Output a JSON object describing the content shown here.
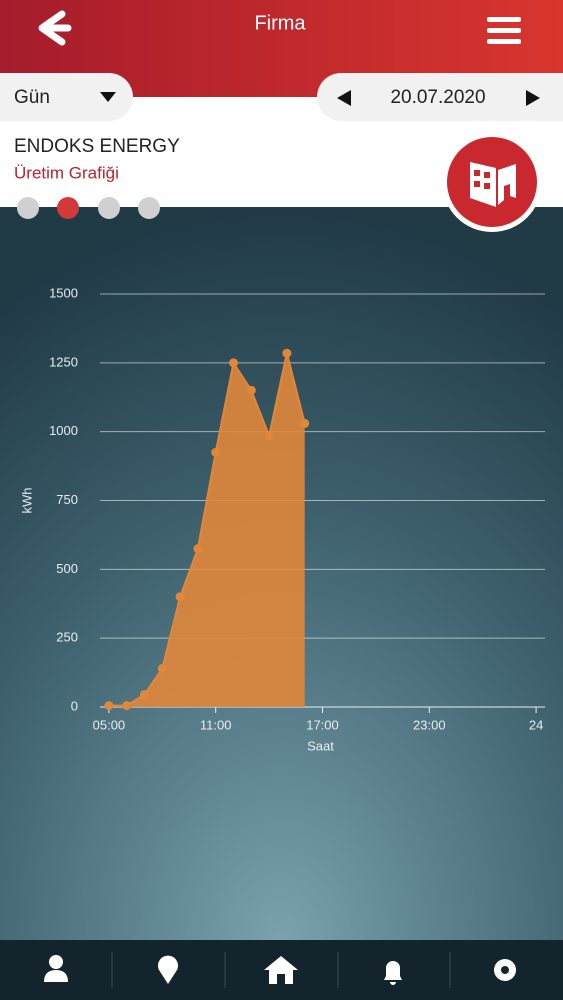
{
  "header": {
    "title": "Firma"
  },
  "period": "Gün",
  "date": "20.07.2020",
  "company": {
    "name": "ENDOKS ENERGY",
    "subtitle": "Üretim Grafiği"
  },
  "chart_data": {
    "type": "area",
    "color": "#e0873a",
    "x": [
      5,
      6,
      7,
      8,
      9,
      10,
      11,
      12,
      13,
      14,
      15,
      16
    ],
    "values": [
      5,
      5,
      45,
      140,
      400,
      575,
      925,
      1250,
      1150,
      985,
      1285,
      1030
    ],
    "xlim": [
      4.5,
      29.5
    ],
    "xticks": [
      {
        "value": 5,
        "label": "05:00"
      },
      {
        "value": 11,
        "label": "11:00"
      },
      {
        "value": 17,
        "label": "17:00"
      },
      {
        "value": 23,
        "label": "23:00"
      },
      {
        "value": 29,
        "label": "24"
      }
    ],
    "ylim": [
      0,
      1500
    ],
    "yticks": [
      0,
      250,
      500,
      750,
      1000,
      1250,
      1500
    ],
    "xlabel": "Saat",
    "ylabel": "kWh",
    "grid": true
  }
}
